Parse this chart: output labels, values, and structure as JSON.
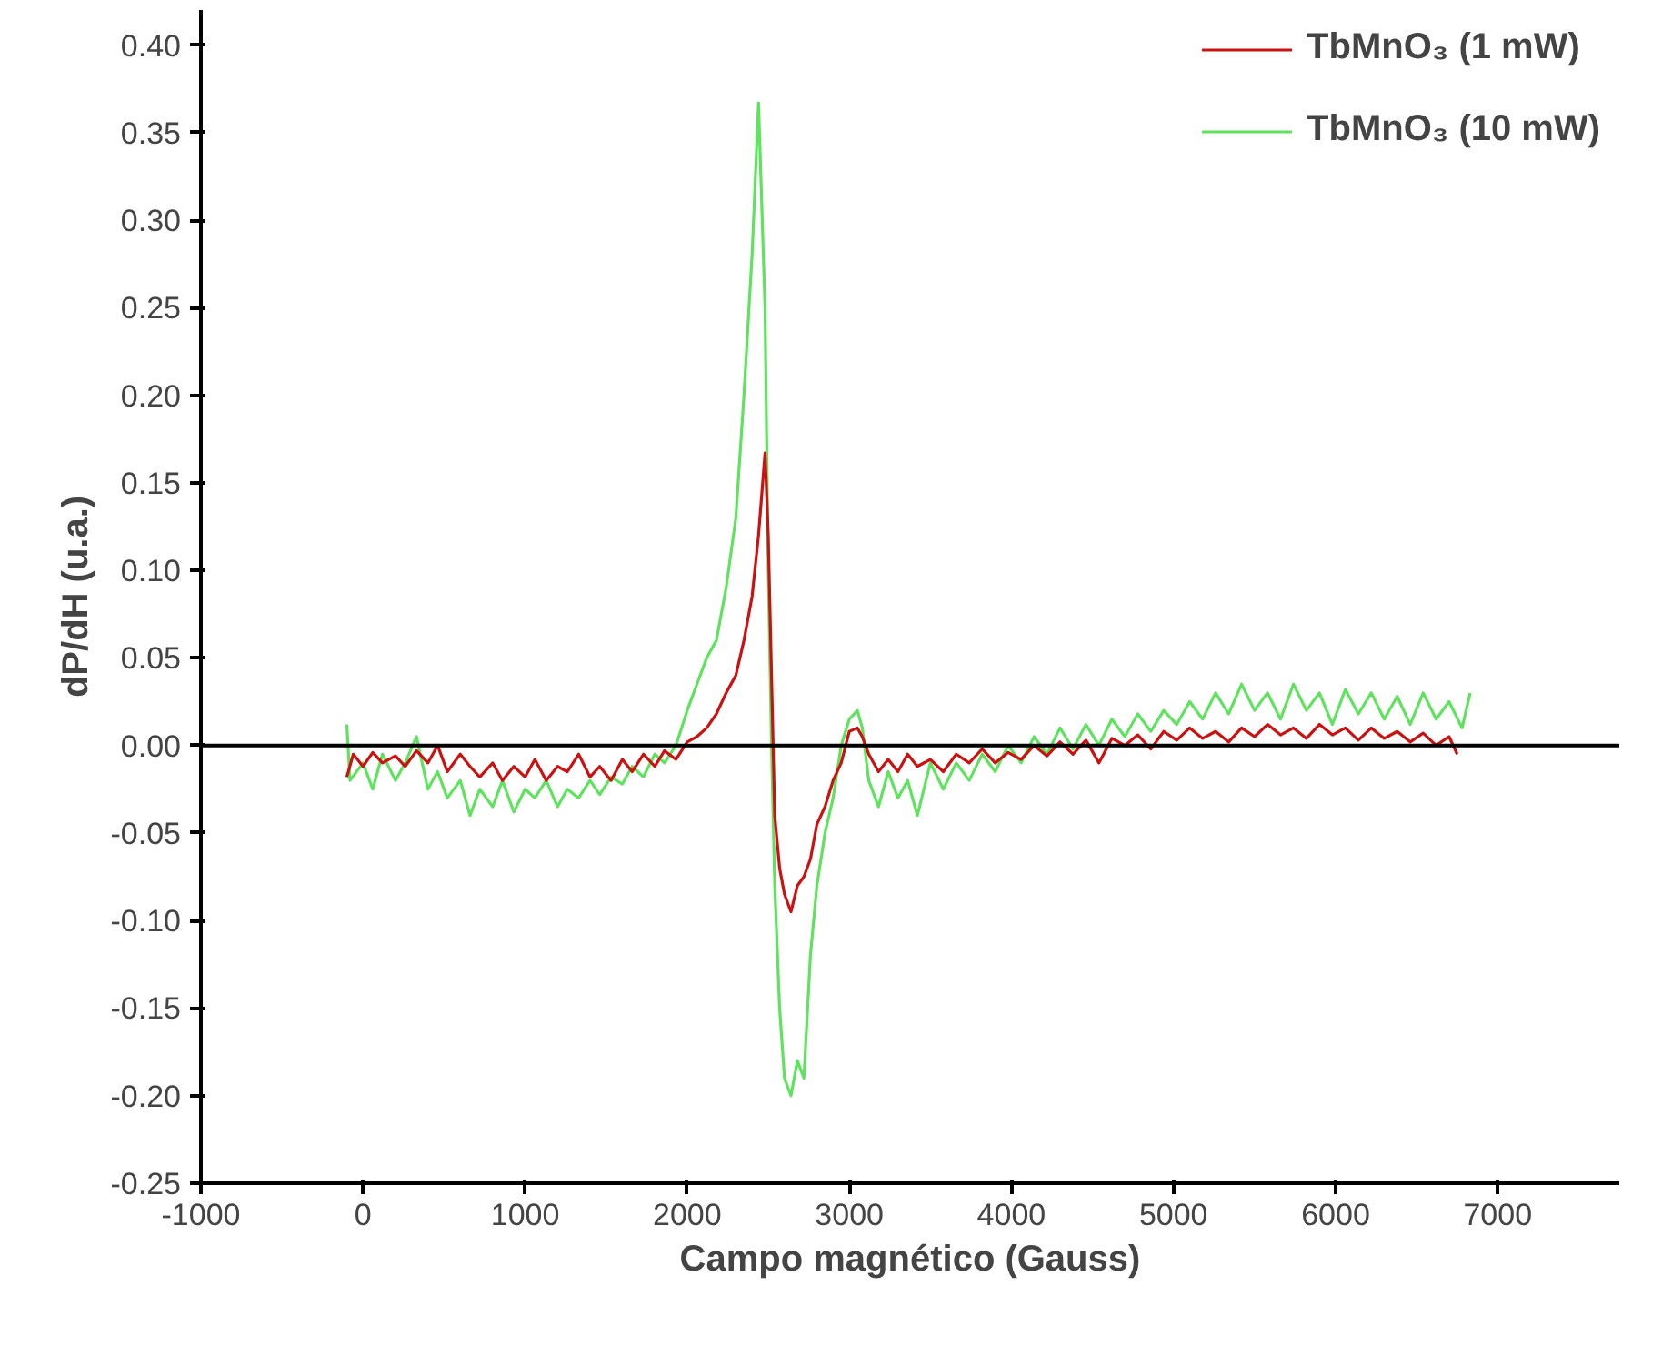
{
  "chart_data": {
    "type": "line",
    "xlabel": "Campo magnético (Gauss)",
    "ylabel": "dP/dH (u.a.)",
    "xlim": [
      -1000,
      7750
    ],
    "ylim": [
      -0.25,
      0.42
    ],
    "xticks": [
      -1000,
      0,
      1000,
      2000,
      3000,
      4000,
      5000,
      6000,
      7000
    ],
    "yticks": [
      {
        "value": -0.25,
        "label": "-0.25"
      },
      {
        "value": -0.2,
        "label": "-0.20"
      },
      {
        "value": -0.15,
        "label": "-0.15"
      },
      {
        "value": -0.1,
        "label": "-0.10"
      },
      {
        "value": -0.05,
        "label": "-0.05"
      },
      {
        "value": 0,
        "label": "0.00"
      },
      {
        "value": 0.05,
        "label": "0.05"
      },
      {
        "value": 0.1,
        "label": "0.10"
      },
      {
        "value": 0.15,
        "label": "0.15"
      },
      {
        "value": 0.2,
        "label": "0.20"
      },
      {
        "value": 0.25,
        "label": "0.25"
      },
      {
        "value": 0.3,
        "label": "0.30"
      },
      {
        "value": 0.35,
        "label": "0.35"
      },
      {
        "value": 0.4,
        "label": "0.40"
      }
    ],
    "grid": false,
    "legend": "top right",
    "line_style": "solid",
    "marker": "none",
    "ref_lines": [
      {
        "axis": "y",
        "value": 0,
        "color": "#000000"
      }
    ],
    "series": [
      {
        "name": "TbMnO₃ (10 mW)",
        "color": "#5fe35f",
        "x": [
          -100,
          -80,
          0,
          60,
          120,
          200,
          260,
          330,
          400,
          460,
          520,
          600,
          660,
          720,
          800,
          860,
          930,
          1000,
          1060,
          1130,
          1200,
          1260,
          1330,
          1400,
          1460,
          1530,
          1600,
          1660,
          1730,
          1800,
          1860,
          1930,
          2000,
          2060,
          2120,
          2180,
          2240,
          2300,
          2350,
          2400,
          2440,
          2480,
          2500,
          2520,
          2540,
          2570,
          2600,
          2640,
          2680,
          2720,
          2760,
          2800,
          2850,
          2900,
          2950,
          3000,
          3050,
          3080,
          3120,
          3180,
          3240,
          3300,
          3360,
          3420,
          3500,
          3580,
          3660,
          3740,
          3820,
          3900,
          3980,
          4060,
          4140,
          4220,
          4300,
          4380,
          4460,
          4540,
          4620,
          4700,
          4780,
          4860,
          4940,
          5020,
          5100,
          5180,
          5260,
          5340,
          5420,
          5500,
          5580,
          5660,
          5740,
          5820,
          5900,
          5980,
          6060,
          6140,
          6220,
          6300,
          6380,
          6460,
          6540,
          6620,
          6700,
          6780,
          6830
        ],
        "values": [
          0.012,
          -0.02,
          -0.01,
          -0.025,
          -0.005,
          -0.02,
          -0.01,
          0.005,
          -0.025,
          -0.015,
          -0.03,
          -0.02,
          -0.04,
          -0.025,
          -0.035,
          -0.02,
          -0.038,
          -0.025,
          -0.03,
          -0.02,
          -0.035,
          -0.025,
          -0.03,
          -0.02,
          -0.028,
          -0.018,
          -0.022,
          -0.012,
          -0.018,
          -0.005,
          -0.01,
          0.0,
          0.02,
          0.035,
          0.05,
          0.06,
          0.09,
          0.13,
          0.2,
          0.28,
          0.367,
          0.25,
          0.1,
          0.0,
          -0.08,
          -0.15,
          -0.19,
          -0.2,
          -0.18,
          -0.19,
          -0.12,
          -0.08,
          -0.05,
          -0.03,
          0.0,
          0.015,
          0.02,
          0.01,
          -0.02,
          -0.035,
          -0.015,
          -0.03,
          -0.02,
          -0.04,
          -0.01,
          -0.025,
          -0.01,
          -0.02,
          -0.005,
          -0.015,
          0.0,
          -0.01,
          0.005,
          -0.005,
          0.01,
          -0.002,
          0.012,
          0.0,
          0.015,
          0.005,
          0.018,
          0.008,
          0.02,
          0.012,
          0.025,
          0.015,
          0.03,
          0.018,
          0.035,
          0.02,
          0.03,
          0.015,
          0.035,
          0.02,
          0.03,
          0.012,
          0.032,
          0.018,
          0.03,
          0.015,
          0.028,
          0.012,
          0.03,
          0.015,
          0.025,
          0.01,
          0.03
        ]
      },
      {
        "name": "TbMnO₃ (1 mW)",
        "color": "#cc1111",
        "x": [
          -100,
          -60,
          0,
          60,
          120,
          200,
          260,
          330,
          400,
          460,
          520,
          600,
          660,
          720,
          800,
          860,
          930,
          1000,
          1060,
          1130,
          1200,
          1260,
          1330,
          1400,
          1460,
          1530,
          1600,
          1660,
          1730,
          1800,
          1860,
          1930,
          2000,
          2060,
          2120,
          2180,
          2240,
          2300,
          2350,
          2400,
          2440,
          2480,
          2500,
          2520,
          2540,
          2570,
          2600,
          2640,
          2680,
          2720,
          2760,
          2800,
          2850,
          2900,
          2950,
          3000,
          3050,
          3080,
          3120,
          3180,
          3240,
          3300,
          3360,
          3420,
          3500,
          3580,
          3660,
          3740,
          3820,
          3900,
          3980,
          4060,
          4140,
          4220,
          4300,
          4380,
          4460,
          4540,
          4620,
          4700,
          4780,
          4860,
          4940,
          5020,
          5100,
          5180,
          5260,
          5340,
          5420,
          5500,
          5580,
          5660,
          5740,
          5820,
          5900,
          5980,
          6060,
          6140,
          6220,
          6300,
          6380,
          6460,
          6540,
          6620,
          6700,
          6750
        ],
        "values": [
          -0.018,
          -0.005,
          -0.012,
          -0.004,
          -0.01,
          -0.006,
          -0.012,
          -0.003,
          -0.01,
          0.0,
          -0.015,
          -0.005,
          -0.012,
          -0.018,
          -0.01,
          -0.02,
          -0.012,
          -0.018,
          -0.008,
          -0.02,
          -0.012,
          -0.015,
          -0.005,
          -0.018,
          -0.012,
          -0.02,
          -0.008,
          -0.015,
          -0.005,
          -0.012,
          -0.003,
          -0.008,
          0.002,
          0.005,
          0.01,
          0.018,
          0.03,
          0.04,
          0.06,
          0.085,
          0.12,
          0.167,
          0.12,
          0.04,
          -0.04,
          -0.07,
          -0.085,
          -0.095,
          -0.08,
          -0.075,
          -0.065,
          -0.045,
          -0.035,
          -0.02,
          -0.01,
          0.008,
          0.01,
          0.005,
          -0.005,
          -0.015,
          -0.008,
          -0.015,
          -0.005,
          -0.012,
          -0.008,
          -0.015,
          -0.005,
          -0.01,
          -0.002,
          -0.01,
          -0.004,
          -0.008,
          0.0,
          -0.006,
          0.002,
          -0.005,
          0.003,
          -0.01,
          0.004,
          0.0,
          0.006,
          -0.002,
          0.008,
          0.003,
          0.01,
          0.004,
          0.008,
          0.002,
          0.01,
          0.005,
          0.012,
          0.006,
          0.01,
          0.004,
          0.012,
          0.006,
          0.01,
          0.003,
          0.01,
          0.004,
          0.008,
          0.002,
          0.007,
          0.0,
          0.005,
          -0.005
        ]
      }
    ]
  }
}
